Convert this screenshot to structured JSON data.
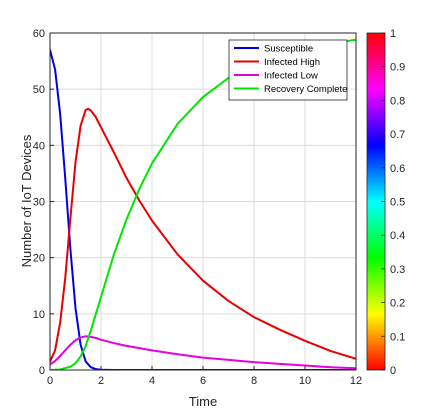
{
  "chart_data": {
    "type": "line",
    "title": "",
    "xlabel": "Time",
    "ylabel": "Number of IoT  Devices",
    "xlim": [
      0,
      12
    ],
    "ylim": [
      0,
      60
    ],
    "xticks": [
      0,
      2,
      4,
      6,
      8,
      10,
      12
    ],
    "yticks": [
      0,
      10,
      20,
      30,
      40,
      50,
      60
    ],
    "grid": true,
    "legend_position": "top-right",
    "series": [
      {
        "name": "Susceptible",
        "color": "#0000e6",
        "x": [
          0,
          0.2,
          0.4,
          0.6,
          0.8,
          1.0,
          1.2,
          1.4,
          1.6,
          1.8,
          2.0,
          2.5,
          3,
          4,
          6,
          8,
          10,
          12
        ],
        "values": [
          57,
          53.5,
          45.5,
          34,
          21.5,
          11,
          4.5,
          1.5,
          0.5,
          0.15,
          0.05,
          0,
          0,
          0,
          0,
          0,
          0,
          0
        ]
      },
      {
        "name": "Infected High",
        "color": "#e60000",
        "x": [
          0,
          0.2,
          0.4,
          0.6,
          0.8,
          1.0,
          1.2,
          1.4,
          1.5,
          1.6,
          1.8,
          2.0,
          2.5,
          3,
          3.5,
          4,
          5,
          6,
          7,
          8,
          9,
          10,
          11,
          12
        ],
        "values": [
          1.5,
          3.5,
          8.5,
          16.5,
          27,
          37,
          43.5,
          46.3,
          46.5,
          46.2,
          45,
          43.2,
          38.8,
          34.2,
          30.2,
          26.6,
          20.6,
          15.9,
          12.3,
          9.4,
          7.2,
          5.2,
          3.4,
          2
        ]
      },
      {
        "name": "Infected Low",
        "color": "#e600e6",
        "x": [
          0,
          0.2,
          0.4,
          0.6,
          0.8,
          1.0,
          1.2,
          1.4,
          1.6,
          1.8,
          2.0,
          2.5,
          3,
          4,
          5,
          6,
          7,
          8,
          9,
          10,
          11,
          12
        ],
        "values": [
          1,
          1.6,
          2.5,
          3.5,
          4.5,
          5.3,
          5.8,
          6,
          5.9,
          5.7,
          5.4,
          4.8,
          4.3,
          3.5,
          2.8,
          2.2,
          1.8,
          1.4,
          1.1,
          0.8,
          0.5,
          0.3
        ]
      },
      {
        "name": "Recovery Complete",
        "color": "#00e600",
        "x": [
          0,
          0.4,
          0.8,
          1.0,
          1.2,
          1.4,
          1.6,
          1.8,
          2.0,
          2.5,
          3,
          3.5,
          4,
          5,
          6,
          7,
          8,
          9,
          10,
          11,
          12
        ],
        "values": [
          0,
          0.1,
          0.6,
          1.2,
          2.4,
          4.3,
          7,
          10,
          13,
          20.5,
          26.8,
          32.2,
          36.8,
          43.8,
          48.6,
          52,
          54.4,
          56.1,
          57.2,
          58.1,
          58.8
        ]
      }
    ],
    "colorbar": {
      "ticks": [
        "0",
        "0.1",
        "0.2",
        "0.3",
        "0.4",
        "0.5",
        "0.6",
        "0.7",
        "0.8",
        "0.9",
        "1"
      ],
      "range": [
        0,
        1
      ]
    }
  }
}
